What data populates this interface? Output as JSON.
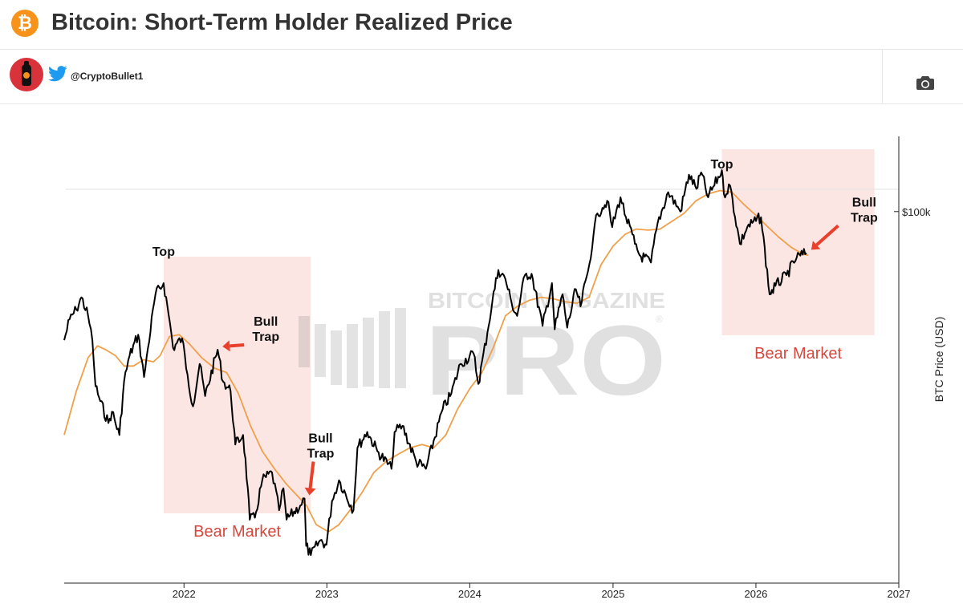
{
  "header": {
    "title": "Bitcoin: Short-Term Holder Realized Price",
    "logo_icon": "bitcoin-icon"
  },
  "author": {
    "handle": "@CryptoBullet1"
  },
  "toolbar": {
    "camera_icon": "camera-icon"
  },
  "watermark": {
    "line1": "BITCOIN MAGAZINE",
    "line2": "PRO",
    "mark": "®"
  },
  "colors": {
    "price": "#000000",
    "realized": "#f0a04b",
    "bear_shade": "#fbe6e4",
    "bear_text": "#d5483e",
    "arrow": "#e8402a"
  },
  "chart_data": {
    "type": "line",
    "xlabel": "",
    "ylabel": "BTC Price (USD)",
    "y_scale": "log",
    "ylim": [
      13500,
      150000
    ],
    "xlim": [
      "2021-03-01",
      "2027-01-01"
    ],
    "x_ticks": [
      "2022",
      "2023",
      "2024",
      "2025",
      "2026",
      "2027"
    ],
    "y_ticks": [
      {
        "value": 100000,
        "label": "$100k"
      }
    ],
    "grid": "horizontal at $100k only",
    "series": [
      {
        "key": "price",
        "values": [
          [
            "2021-03-01",
            50000
          ],
          [
            "2021-03-15",
            56000
          ],
          [
            "2021-04-01",
            59000
          ],
          [
            "2021-04-14",
            63000
          ],
          [
            "2021-05-01",
            57000
          ],
          [
            "2021-05-12",
            50000
          ],
          [
            "2021-05-20",
            39000
          ],
          [
            "2021-06-01",
            36000
          ],
          [
            "2021-06-22",
            32000
          ],
          [
            "2021-07-01",
            34000
          ],
          [
            "2021-07-20",
            30000
          ],
          [
            "2021-08-01",
            40000
          ],
          [
            "2021-08-15",
            46000
          ],
          [
            "2021-09-06",
            51500
          ],
          [
            "2021-09-21",
            41000
          ],
          [
            "2021-10-01",
            48000
          ],
          [
            "2021-10-20",
            64000
          ],
          [
            "2021-11-10",
            68000
          ],
          [
            "2021-11-26",
            55000
          ],
          [
            "2021-12-04",
            48000
          ],
          [
            "2021-12-27",
            50500
          ],
          [
            "2022-01-10",
            41500
          ],
          [
            "2022-01-24",
            35000
          ],
          [
            "2022-02-10",
            44000
          ],
          [
            "2022-02-24",
            37000
          ],
          [
            "2022-03-28",
            47500
          ],
          [
            "2022-04-11",
            40000
          ],
          [
            "2022-04-30",
            38000
          ],
          [
            "2022-05-09",
            31000
          ],
          [
            "2022-05-12",
            28500
          ],
          [
            "2022-06-01",
            30000
          ],
          [
            "2022-06-13",
            22500
          ],
          [
            "2022-06-18",
            19000
          ],
          [
            "2022-07-01",
            19200
          ],
          [
            "2022-07-20",
            23500
          ],
          [
            "2022-08-14",
            24500
          ],
          [
            "2022-09-01",
            20000
          ],
          [
            "2022-09-12",
            22500
          ],
          [
            "2022-09-20",
            19000
          ],
          [
            "2022-10-25",
            20500
          ],
          [
            "2022-11-05",
            21300
          ],
          [
            "2022-11-09",
            16500
          ],
          [
            "2022-11-21",
            15700
          ],
          [
            "2022-12-15",
            17000
          ],
          [
            "2022-12-31",
            16600
          ],
          [
            "2023-01-14",
            21000
          ],
          [
            "2023-02-01",
            23500
          ],
          [
            "2023-03-10",
            20000
          ],
          [
            "2023-03-20",
            28000
          ],
          [
            "2023-04-14",
            30500
          ],
          [
            "2023-05-10",
            27500
          ],
          [
            "2023-06-15",
            25000
          ],
          [
            "2023-06-23",
            30500
          ],
          [
            "2023-07-13",
            31500
          ],
          [
            "2023-08-17",
            26000
          ],
          [
            "2023-09-11",
            25000
          ],
          [
            "2023-10-24",
            34500
          ],
          [
            "2023-11-15",
            37500
          ],
          [
            "2023-12-08",
            44000
          ],
          [
            "2024-01-11",
            46500
          ],
          [
            "2024-01-23",
            39500
          ],
          [
            "2024-02-15",
            52000
          ],
          [
            "2024-02-28",
            62000
          ],
          [
            "2024-03-14",
            73000
          ],
          [
            "2024-04-01",
            69500
          ],
          [
            "2024-04-17",
            61000
          ],
          [
            "2024-05-01",
            57000
          ],
          [
            "2024-05-21",
            71000
          ],
          [
            "2024-06-07",
            71500
          ],
          [
            "2024-07-05",
            54000
          ],
          [
            "2024-07-29",
            68000
          ],
          [
            "2024-08-05",
            53000
          ],
          [
            "2024-08-25",
            64000
          ],
          [
            "2024-09-06",
            53500
          ],
          [
            "2024-09-28",
            65800
          ],
          [
            "2024-10-10",
            60000
          ],
          [
            "2024-10-29",
            72500
          ],
          [
            "2024-11-12",
            88000
          ],
          [
            "2024-11-22",
            99000
          ],
          [
            "2024-12-05",
            102000
          ],
          [
            "2024-12-17",
            106000
          ],
          [
            "2024-12-30",
            92000
          ],
          [
            "2025-01-20",
            108000
          ],
          [
            "2025-02-03",
            97000
          ],
          [
            "2025-02-26",
            84000
          ],
          [
            "2025-03-10",
            79000
          ],
          [
            "2025-04-08",
            76000
          ],
          [
            "2025-04-25",
            94000
          ],
          [
            "2025-05-22",
            111000
          ],
          [
            "2025-06-22",
            100000
          ],
          [
            "2025-07-14",
            122000
          ],
          [
            "2025-08-02",
            113000
          ],
          [
            "2025-08-14",
            123500
          ],
          [
            "2025-09-01",
            108000
          ],
          [
            "2025-10-06",
            125000
          ],
          [
            "2025-10-11",
            110000
          ],
          [
            "2025-10-27",
            115000
          ],
          [
            "2025-11-21",
            84000
          ],
          [
            "2025-12-10",
            92000
          ],
          [
            "2026-01-14",
            97000
          ],
          [
            "2026-02-05",
            64000
          ],
          [
            "2026-02-20",
            67000
          ],
          [
            "2026-03-20",
            71000
          ],
          [
            "2026-04-15",
            78000
          ],
          [
            "2026-05-10",
            80000
          ]
        ]
      },
      {
        "key": "short_term_holder_realized_price",
        "values": [
          [
            "2021-03-01",
            30000
          ],
          [
            "2021-04-01",
            38000
          ],
          [
            "2021-05-01",
            45500
          ],
          [
            "2021-05-25",
            48500
          ],
          [
            "2021-06-15",
            47500
          ],
          [
            "2021-07-10",
            46000
          ],
          [
            "2021-08-01",
            43500
          ],
          [
            "2021-08-25",
            43500
          ],
          [
            "2021-09-20",
            45000
          ],
          [
            "2021-10-15",
            44500
          ],
          [
            "2021-11-01",
            46000
          ],
          [
            "2021-11-25",
            51000
          ],
          [
            "2021-12-20",
            51500
          ],
          [
            "2022-01-15",
            49000
          ],
          [
            "2022-02-15",
            45500
          ],
          [
            "2022-03-20",
            43000
          ],
          [
            "2022-04-20",
            42000
          ],
          [
            "2022-05-20",
            37500
          ],
          [
            "2022-06-20",
            31500
          ],
          [
            "2022-07-20",
            27500
          ],
          [
            "2022-08-20",
            25000
          ],
          [
            "2022-09-20",
            23000
          ],
          [
            "2022-10-20",
            21500
          ],
          [
            "2022-11-10",
            20500
          ],
          [
            "2022-12-05",
            18500
          ],
          [
            "2023-01-05",
            17800
          ],
          [
            "2023-02-01",
            18500
          ],
          [
            "2023-03-01",
            20000
          ],
          [
            "2023-04-01",
            22000
          ],
          [
            "2023-05-01",
            24500
          ],
          [
            "2023-06-01",
            26000
          ],
          [
            "2023-07-01",
            27000
          ],
          [
            "2023-08-01",
            28000
          ],
          [
            "2023-09-01",
            28500
          ],
          [
            "2023-10-01",
            28000
          ],
          [
            "2023-11-01",
            30000
          ],
          [
            "2023-12-01",
            34500
          ],
          [
            "2024-01-01",
            38500
          ],
          [
            "2024-02-01",
            42000
          ],
          [
            "2024-03-01",
            48000
          ],
          [
            "2024-04-01",
            57000
          ],
          [
            "2024-05-01",
            60000
          ],
          [
            "2024-06-01",
            62000
          ],
          [
            "2024-07-01",
            63000
          ],
          [
            "2024-08-01",
            62500
          ],
          [
            "2024-09-01",
            61500
          ],
          [
            "2024-10-01",
            61000
          ],
          [
            "2024-11-01",
            63000
          ],
          [
            "2024-12-01",
            75000
          ],
          [
            "2025-01-01",
            83000
          ],
          [
            "2025-02-01",
            88500
          ],
          [
            "2025-03-01",
            91000
          ],
          [
            "2025-04-01",
            90500
          ],
          [
            "2025-05-01",
            91000
          ],
          [
            "2025-06-01",
            95000
          ],
          [
            "2025-07-01",
            99000
          ],
          [
            "2025-08-01",
            106000
          ],
          [
            "2025-09-01",
            110000
          ],
          [
            "2025-10-01",
            112000
          ],
          [
            "2025-11-01",
            111000
          ],
          [
            "2025-12-01",
            104000
          ],
          [
            "2026-01-01",
            98000
          ],
          [
            "2026-02-01",
            92000
          ],
          [
            "2026-03-01",
            87000
          ],
          [
            "2026-04-01",
            82500
          ],
          [
            "2026-05-01",
            79500
          ],
          [
            "2026-05-15",
            79000
          ]
        ]
      }
    ],
    "regions": [
      {
        "type": "bear-market",
        "start": "2021-11-10",
        "end": "2022-11-21",
        "label": "Bear Market"
      },
      {
        "type": "bear-market",
        "start": "2025-10-06",
        "end": "2026-10-31",
        "label": "Bear Market"
      }
    ],
    "annotations": [
      {
        "text": "Top",
        "at": [
          "2021-11-10",
          68000
        ]
      },
      {
        "text": "Bull Trap",
        "at": [
          "2022-03-28",
          47500
        ],
        "arrow": true
      },
      {
        "text": "Bull Trap",
        "at": [
          "2022-11-05",
          21300
        ],
        "arrow": true
      },
      {
        "text": "Top",
        "at": [
          "2025-10-06",
          125000
        ]
      },
      {
        "text": "Bull Trap",
        "at": [
          "2026-05-10",
          80000
        ],
        "arrow": true
      }
    ]
  }
}
